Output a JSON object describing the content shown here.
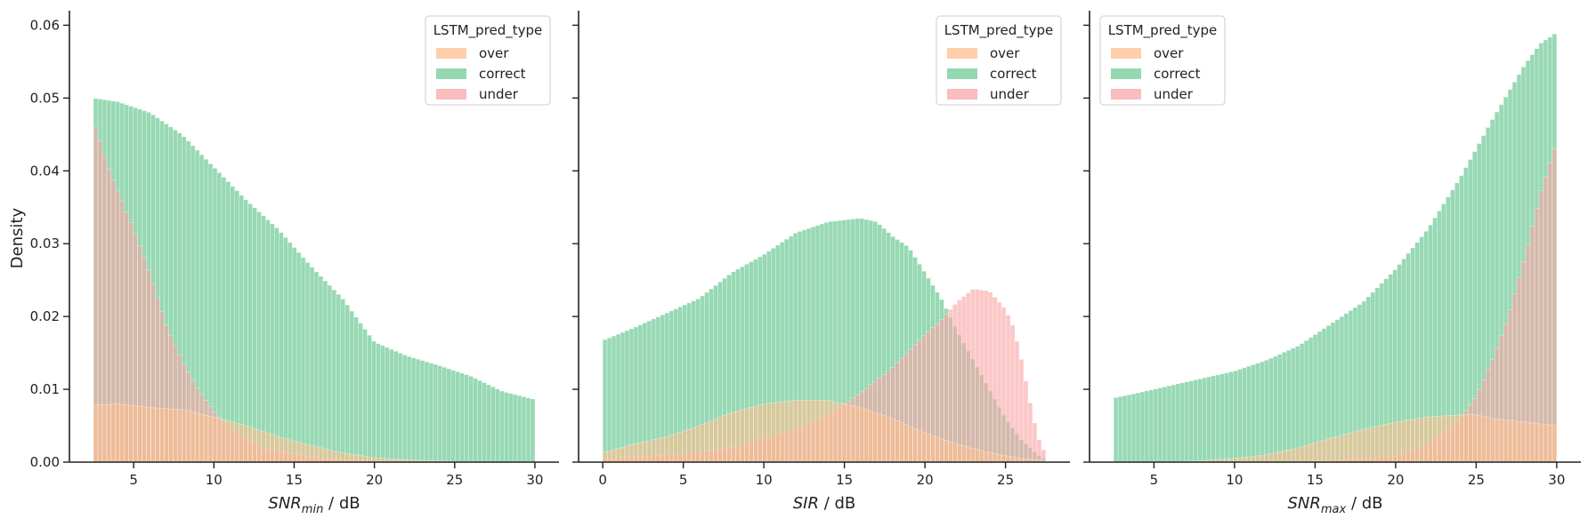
{
  "figure": {
    "shared_ylabel": "Density"
  },
  "colors": {
    "over": "#fdbf8e",
    "correct": "#6fcb97",
    "under": "#f8a5a5",
    "overlap_correct_under": "#9fb07f"
  },
  "chart_data": [
    {
      "type": "histogram",
      "xlabel_main": "SNR",
      "xlabel_sub": "min",
      "xlabel_unit": " / dB",
      "xlim": [
        1.0,
        31.5
      ],
      "ylim": [
        0,
        0.062
      ],
      "xticks": [
        5,
        10,
        15,
        20,
        25,
        30
      ],
      "yticks": [
        0.0,
        0.01,
        0.02,
        0.03,
        0.04,
        0.05,
        0.06
      ],
      "ytick_labels": [
        "0.00",
        "0.01",
        "0.02",
        "0.03",
        "0.04",
        "0.05",
        "0.06"
      ],
      "bins": {
        "start": 2.5,
        "end": 30.0,
        "count": 100
      },
      "legend": {
        "title": "LSTM_pred_type",
        "position": "top-right",
        "entries": [
          "over",
          "correct",
          "under"
        ]
      },
      "series": [
        {
          "name": "correct",
          "curve": [
            [
              2.5,
              0.05
            ],
            [
              4,
              0.0495
            ],
            [
              6,
              0.048
            ],
            [
              8,
              0.045
            ],
            [
              10,
              0.0405
            ],
            [
              12,
              0.036
            ],
            [
              14,
              0.032
            ],
            [
              16,
              0.027
            ],
            [
              18,
              0.0225
            ],
            [
              20,
              0.0165
            ],
            [
              22,
              0.0146
            ],
            [
              24,
              0.0133
            ],
            [
              26,
              0.0118
            ],
            [
              28,
              0.0097
            ],
            [
              30,
              0.0086
            ]
          ]
        },
        {
          "name": "under",
          "curve": [
            [
              2.5,
              0.047
            ],
            [
              3.5,
              0.04
            ],
            [
              5,
              0.032
            ],
            [
              6,
              0.026
            ],
            [
              7,
              0.019
            ],
            [
              8,
              0.014
            ],
            [
              9,
              0.01
            ],
            [
              10,
              0.007
            ],
            [
              11,
              0.0045
            ],
            [
              13,
              0.002
            ],
            [
              16,
              0.0007
            ],
            [
              19,
              0.0002
            ],
            [
              22,
              0.0001
            ],
            [
              26,
              0.0
            ],
            [
              30,
              0.0
            ]
          ]
        },
        {
          "name": "over",
          "curve": [
            [
              2.5,
              0.0078
            ],
            [
              4,
              0.008
            ],
            [
              6,
              0.0075
            ],
            [
              8,
              0.0072
            ],
            [
              10,
              0.0062
            ],
            [
              12,
              0.005
            ],
            [
              14,
              0.0035
            ],
            [
              16,
              0.0023
            ],
            [
              18,
              0.0013
            ],
            [
              20,
              0.0006
            ],
            [
              22,
              0.0003
            ],
            [
              25,
              0.0001
            ],
            [
              30,
              0.0
            ]
          ]
        }
      ]
    },
    {
      "type": "histogram",
      "xlabel_main": "SIR",
      "xlabel_sub": "",
      "xlabel_unit": " / dB",
      "xlim": [
        -1.5,
        29.0
      ],
      "ylim": [
        0,
        0.062
      ],
      "xticks": [
        0,
        5,
        10,
        15,
        20,
        25
      ],
      "yticks": [
        0.0,
        0.01,
        0.02,
        0.03,
        0.04,
        0.05,
        0.06
      ],
      "ytick_labels": [
        "",
        "",
        "",
        "",
        "",
        "",
        ""
      ],
      "bins": {
        "start": 0.0,
        "end": 27.5,
        "count": 100
      },
      "legend": {
        "title": "LSTM_pred_type",
        "position": "top-right",
        "entries": [
          "over",
          "correct",
          "under"
        ]
      },
      "series": [
        {
          "name": "correct",
          "curve": [
            [
              0,
              0.0167
            ],
            [
              2,
              0.0185
            ],
            [
              4,
              0.0205
            ],
            [
              6,
              0.0225
            ],
            [
              8,
              0.026
            ],
            [
              10,
              0.0285
            ],
            [
              12,
              0.0315
            ],
            [
              14,
              0.033
            ],
            [
              16,
              0.0335
            ],
            [
              17,
              0.033
            ],
            [
              18,
              0.031
            ],
            [
              19,
              0.0295
            ],
            [
              20,
              0.026
            ],
            [
              21,
              0.0225
            ],
            [
              22,
              0.018
            ],
            [
              23,
              0.014
            ],
            [
              24,
              0.01
            ],
            [
              25,
              0.006
            ],
            [
              26,
              0.003
            ],
            [
              27,
              0.001
            ],
            [
              27.5,
              0.0003
            ]
          ]
        },
        {
          "name": "under",
          "curve": [
            [
              0,
              0.0005
            ],
            [
              5,
              0.0011
            ],
            [
              8,
              0.002
            ],
            [
              10,
              0.0033
            ],
            [
              12,
              0.0045
            ],
            [
              14,
              0.0065
            ],
            [
              16,
              0.0095
            ],
            [
              18,
              0.013
            ],
            [
              20,
              0.0175
            ],
            [
              21,
              0.0195
            ],
            [
              22,
              0.022
            ],
            [
              23,
              0.0238
            ],
            [
              24,
              0.0235
            ],
            [
              25,
              0.021
            ],
            [
              25.5,
              0.0185
            ],
            [
              26,
              0.014
            ],
            [
              26.5,
              0.0085
            ],
            [
              27,
              0.0035
            ],
            [
              27.5,
              0.001
            ]
          ]
        },
        {
          "name": "over",
          "curve": [
            [
              0,
              0.0013
            ],
            [
              2,
              0.0025
            ],
            [
              4,
              0.0035
            ],
            [
              6,
              0.005
            ],
            [
              8,
              0.0068
            ],
            [
              10,
              0.008
            ],
            [
              12,
              0.0085
            ],
            [
              14,
              0.0085
            ],
            [
              16,
              0.0075
            ],
            [
              18,
              0.006
            ],
            [
              20,
              0.004
            ],
            [
              22,
              0.0025
            ],
            [
              24,
              0.0013
            ],
            [
              26,
              0.0005
            ],
            [
              27.5,
              0.0002
            ]
          ]
        }
      ]
    },
    {
      "type": "histogram",
      "xlabel_main": "SNR",
      "xlabel_sub": "max",
      "xlabel_unit": " / dB",
      "xlim": [
        1.0,
        31.5
      ],
      "ylim": [
        0,
        0.062
      ],
      "xticks": [
        5,
        10,
        15,
        20,
        25,
        30
      ],
      "yticks": [
        0.0,
        0.01,
        0.02,
        0.03,
        0.04,
        0.05,
        0.06
      ],
      "ytick_labels": [
        "",
        "",
        "",
        "",
        "",
        "",
        ""
      ],
      "bins": {
        "start": 2.5,
        "end": 30.0,
        "count": 100
      },
      "legend": {
        "title": "LSTM_pred_type",
        "position": "top-left",
        "entries": [
          "over",
          "correct",
          "under"
        ]
      },
      "series": [
        {
          "name": "correct",
          "curve": [
            [
              2.5,
              0.0088
            ],
            [
              4,
              0.0095
            ],
            [
              6,
              0.0105
            ],
            [
              8,
              0.0115
            ],
            [
              10,
              0.0125
            ],
            [
              12,
              0.014
            ],
            [
              14,
              0.016
            ],
            [
              16,
              0.019
            ],
            [
              18,
              0.022
            ],
            [
              20,
              0.0265
            ],
            [
              22,
              0.032
            ],
            [
              24,
              0.039
            ],
            [
              26,
              0.047
            ],
            [
              28,
              0.0545
            ],
            [
              29,
              0.0575
            ],
            [
              30,
              0.059
            ]
          ]
        },
        {
          "name": "under",
          "curve": [
            [
              2.5,
              0.0
            ],
            [
              10,
              0.0
            ],
            [
              16,
              0.0002
            ],
            [
              20,
              0.0008
            ],
            [
              22,
              0.0025
            ],
            [
              24,
              0.006
            ],
            [
              25,
              0.009
            ],
            [
              26,
              0.014
            ],
            [
              27,
              0.02
            ],
            [
              28,
              0.028
            ],
            [
              29,
              0.037
            ],
            [
              30,
              0.044
            ]
          ]
        },
        {
          "name": "over",
          "curve": [
            [
              2.5,
              0.0
            ],
            [
              6,
              0.0
            ],
            [
              8,
              0.0002
            ],
            [
              10,
              0.0005
            ],
            [
              12,
              0.001
            ],
            [
              14,
              0.002
            ],
            [
              16,
              0.0033
            ],
            [
              18,
              0.0045
            ],
            [
              20,
              0.0055
            ],
            [
              22,
              0.0062
            ],
            [
              24,
              0.0065
            ],
            [
              25,
              0.0065
            ],
            [
              26,
              0.006
            ],
            [
              28,
              0.0055
            ],
            [
              30,
              0.005
            ]
          ]
        }
      ]
    }
  ]
}
